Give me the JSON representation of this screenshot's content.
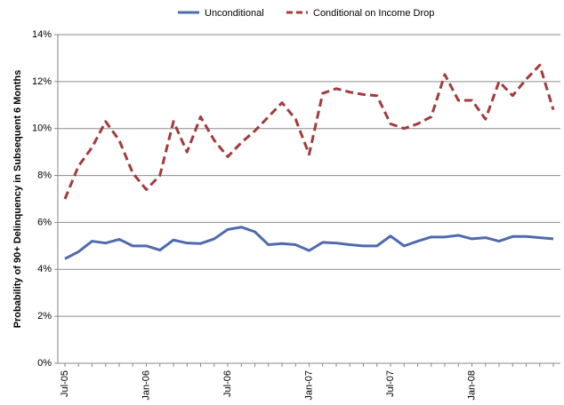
{
  "chart_data": {
    "type": "line",
    "y_label": "Probability of 90+ Delinquency in Subsequent 6 Months",
    "categories": [
      "Jul-05",
      null,
      null,
      null,
      null,
      null,
      "Jan-06",
      null,
      null,
      null,
      null,
      null,
      "Jul-06",
      null,
      null,
      null,
      null,
      null,
      "Jan-07",
      null,
      null,
      null,
      null,
      null,
      "Jul-07",
      null,
      null,
      null,
      null,
      null,
      "Jan-08",
      null,
      null,
      null,
      null,
      null,
      null
    ],
    "series": [
      {
        "name": "Unconditional",
        "color": "#4f6aad",
        "dashed": false,
        "values": [
          4.45,
          4.75,
          5.2,
          5.12,
          5.28,
          5.0,
          5.0,
          4.82,
          5.25,
          5.12,
          5.1,
          5.3,
          5.7,
          5.8,
          5.6,
          5.05,
          5.1,
          5.05,
          4.8,
          5.15,
          5.12,
          5.05,
          5.0,
          5.0,
          5.42,
          5.0,
          5.2,
          5.38,
          5.38,
          5.45,
          5.3,
          5.35,
          5.2,
          5.4,
          5.4,
          5.35,
          5.3
        ]
      },
      {
        "name": "Conditional on Income Drop",
        "color": "#a23b3c",
        "dashed": true,
        "values": [
          7.0,
          8.4,
          9.2,
          10.3,
          9.5,
          8.1,
          7.4,
          8.0,
          10.3,
          9.0,
          10.5,
          9.5,
          8.8,
          9.4,
          9.9,
          10.5,
          11.1,
          10.4,
          8.9,
          11.5,
          11.7,
          11.55,
          11.45,
          11.4,
          10.2,
          10.0,
          10.2,
          10.5,
          12.3,
          11.2,
          11.2,
          10.4,
          12.0,
          11.4,
          12.1,
          12.7,
          10.8
        ]
      }
    ],
    "ylim": [
      0,
      14
    ],
    "yticks": [
      {
        "value": 0,
        "label": "0%"
      },
      {
        "value": 2,
        "label": "2%"
      },
      {
        "value": 4,
        "label": "4%"
      },
      {
        "value": 6,
        "label": "6%"
      },
      {
        "value": 8,
        "label": "8%"
      },
      {
        "value": 10,
        "label": "10%"
      },
      {
        "value": 12,
        "label": "12%"
      },
      {
        "value": 14,
        "label": "14%"
      }
    ],
    "grid": true,
    "legend": "top"
  }
}
